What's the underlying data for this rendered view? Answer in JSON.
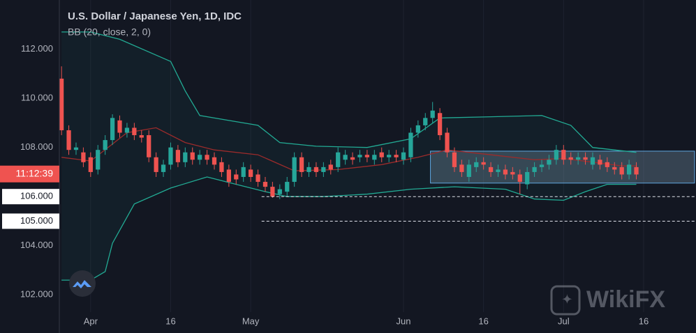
{
  "chart_data": {
    "type": "candlestick",
    "title": "U.S. Dollar / Japanese Yen, 1D, IDC",
    "subtitle": "BB (20, close, 2, 0)",
    "up_color": "#26a69a",
    "down_color": "#ef5350",
    "xlim": [
      -0.3,
      87.2
    ],
    "xticks": [
      {
        "value": 4,
        "label": "Apr"
      },
      {
        "value": 15,
        "label": "16"
      },
      {
        "value": 26,
        "label": "May"
      },
      {
        "value": 47,
        "label": "Jun"
      },
      {
        "value": 58,
        "label": "16"
      },
      {
        "value": 69,
        "label": "Jul"
      },
      {
        "value": 80,
        "label": "16"
      }
    ],
    "ylim": [
      101.3,
      114.0
    ],
    "yticks": [
      {
        "value": 102,
        "label": "102.000"
      },
      {
        "value": 104,
        "label": "104.000"
      },
      {
        "value": 108,
        "label": "108.000"
      },
      {
        "value": 110,
        "label": "110.000"
      },
      {
        "value": 112,
        "label": "112.000"
      }
    ],
    "grid": true,
    "x": [
      0,
      1,
      2,
      3,
      4,
      5,
      6,
      7,
      8,
      9,
      10,
      11,
      12,
      13,
      14,
      15,
      16,
      17,
      18,
      19,
      20,
      21,
      22,
      23,
      24,
      25,
      26,
      27,
      28,
      29,
      30,
      31,
      32,
      33,
      34,
      35,
      36,
      37,
      38,
      39,
      40,
      41,
      42,
      43,
      44,
      45,
      46,
      47,
      48,
      49,
      50,
      51,
      52,
      53,
      54,
      55,
      56,
      57,
      58,
      59,
      60,
      61,
      62,
      63,
      64,
      65,
      66,
      67,
      68,
      69,
      70,
      71,
      72,
      73,
      74,
      75,
      76,
      77,
      78,
      79
    ],
    "open": [
      110.8,
      108.7,
      107.9,
      107.8,
      107.6,
      107.1,
      107.9,
      108.3,
      109.1,
      108.6,
      108.8,
      108.5,
      108.5,
      107.6,
      107.0,
      107.3,
      107.9,
      107.4,
      107.8,
      107.5,
      107.7,
      107.6,
      107.4,
      107.1,
      106.9,
      106.8,
      107.1,
      106.9,
      106.6,
      106.4,
      106.1,
      106.2,
      106.6,
      107.6,
      107.0,
      107.2,
      107.0,
      107.3,
      107.2,
      107.5,
      107.6,
      107.6,
      107.7,
      107.5,
      107.8,
      107.6,
      107.7,
      107.5,
      107.6,
      108.6,
      108.9,
      109.2,
      109.4,
      108.6,
      107.8,
      107.3,
      106.8,
      107.2,
      107.4,
      107.2,
      107.0,
      107.1,
      107.0,
      106.9,
      106.5,
      107.0,
      107.2,
      107.3,
      107.5,
      107.9,
      107.6,
      107.5,
      107.6,
      107.3,
      107.5,
      107.4,
      107.2,
      107.2,
      106.9,
      107.2
    ],
    "high": [
      111.3,
      108.9,
      108.2,
      108.0,
      107.8,
      108.1,
      108.5,
      109.35,
      109.3,
      109.0,
      109.0,
      108.7,
      108.7,
      107.8,
      107.5,
      108.2,
      108.1,
      108.0,
      108.0,
      107.9,
      107.9,
      107.8,
      107.6,
      107.3,
      107.1,
      107.4,
      107.3,
      107.1,
      106.8,
      106.6,
      106.5,
      106.8,
      107.8,
      107.8,
      107.4,
      107.4,
      107.4,
      107.5,
      108.0,
      107.9,
      107.8,
      107.9,
      107.9,
      107.9,
      108.0,
      107.9,
      107.9,
      108.0,
      108.8,
      109.1,
      109.4,
      109.85,
      109.6,
      108.8,
      108.0,
      107.5,
      107.5,
      107.6,
      107.6,
      107.4,
      107.3,
      107.3,
      107.2,
      107.1,
      107.2,
      107.4,
      107.5,
      107.7,
      108.1,
      108.1,
      107.8,
      107.8,
      107.8,
      107.8,
      107.7,
      107.6,
      107.4,
      107.4,
      107.5,
      107.4
    ],
    "low": [
      108.5,
      107.7,
      107.7,
      107.2,
      106.8,
      106.9,
      107.7,
      108.1,
      108.4,
      108.4,
      108.3,
      108.2,
      107.4,
      106.8,
      106.8,
      107.1,
      107.2,
      107.2,
      107.3,
      107.3,
      107.3,
      107.1,
      106.8,
      106.4,
      106.5,
      106.6,
      106.6,
      106.4,
      106.2,
      105.95,
      105.9,
      106.0,
      106.4,
      106.8,
      106.8,
      106.8,
      106.8,
      106.9,
      107.0,
      107.3,
      107.3,
      107.4,
      107.4,
      107.3,
      107.4,
      107.4,
      107.4,
      107.3,
      107.4,
      108.4,
      108.7,
      109.0,
      108.3,
      107.6,
      107.0,
      106.8,
      106.6,
      107.0,
      107.1,
      106.8,
      106.8,
      106.7,
      106.7,
      106.1,
      106.3,
      106.8,
      107.0,
      107.1,
      107.3,
      107.3,
      107.3,
      107.3,
      107.3,
      107.1,
      107.1,
      107.0,
      106.9,
      106.7,
      106.7,
      106.7
    ],
    "close": [
      108.7,
      107.9,
      108.0,
      107.4,
      107.0,
      107.9,
      108.3,
      109.2,
      108.6,
      108.8,
      108.5,
      108.4,
      107.6,
      107.0,
      107.3,
      108.0,
      107.4,
      107.8,
      107.5,
      107.7,
      107.5,
      107.3,
      107.0,
      106.6,
      106.7,
      107.2,
      106.8,
      106.6,
      106.4,
      106.0,
      106.3,
      106.6,
      107.6,
      107.0,
      107.2,
      107.0,
      107.2,
      107.1,
      107.8,
      107.7,
      107.5,
      107.7,
      107.6,
      107.7,
      107.6,
      107.7,
      107.6,
      107.8,
      108.6,
      108.9,
      109.2,
      109.5,
      108.5,
      107.8,
      107.2,
      107.0,
      107.3,
      107.4,
      107.3,
      107.0,
      107.1,
      106.9,
      106.9,
      106.6,
      107.0,
      107.2,
      107.3,
      107.5,
      107.9,
      107.5,
      107.5,
      107.6,
      107.5,
      107.6,
      107.3,
      107.2,
      107.1,
      106.9,
      107.3,
      106.9
    ],
    "bands": [
      {
        "color": "#22ab94",
        "x": [
          0,
          4,
          8,
          15,
          17,
          19,
          23,
          27,
          30,
          35,
          42,
          48,
          52,
          59,
          66,
          70,
          73,
          79
        ],
        "values": [
          112.7,
          112.7,
          112.4,
          111.5,
          110.3,
          109.3,
          109.1,
          108.9,
          108.2,
          108.05,
          108.0,
          108.35,
          109.2,
          109.25,
          109.3,
          108.9,
          108.0,
          107.8
        ]
      },
      {
        "color": "#9c2b2b",
        "x": [
          0,
          4,
          9,
          13,
          17,
          21,
          27,
          32,
          38,
          44,
          49,
          53,
          59,
          65,
          69,
          73,
          77,
          79
        ],
        "values": [
          107.6,
          107.45,
          108.6,
          108.8,
          108.2,
          107.9,
          107.7,
          107.05,
          107.1,
          107.3,
          107.6,
          107.9,
          107.7,
          107.5,
          107.55,
          107.4,
          107.25,
          107.25
        ]
      },
      {
        "color": "#22ab94",
        "x": [
          0,
          4,
          6,
          7,
          10,
          15,
          20,
          24,
          28,
          31,
          36,
          42,
          48,
          54,
          61,
          65,
          69,
          72,
          75,
          79
        ],
        "values": [
          102.6,
          102.6,
          102.95,
          104.1,
          105.7,
          106.35,
          106.8,
          106.5,
          106.2,
          106.0,
          106.0,
          106.1,
          106.3,
          106.4,
          106.3,
          105.9,
          105.85,
          106.2,
          106.5,
          106.5
        ]
      }
    ],
    "hlines": [
      {
        "value": 106,
        "label": "106.000",
        "from": 27.5
      },
      {
        "value": 105,
        "label": "105.000",
        "from": 27.5
      }
    ],
    "rectangle": {
      "x": [
        50.7,
        87.0
      ],
      "y": [
        106.55,
        107.85
      ]
    },
    "countdown": {
      "value": 106.92,
      "label": "11:12:39"
    },
    "watermark": "WikiFX"
  }
}
